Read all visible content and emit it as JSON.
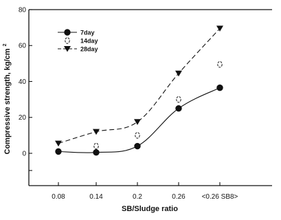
{
  "chart_data": {
    "type": "line",
    "xlabel": "SB/Sludge ratio",
    "ylabel": "Compressive strength, kg/cm",
    "ylabel_sup": "2",
    "categories": [
      "0.08",
      "0.14",
      "0.2",
      "0.26",
      "<0.26 SB8>"
    ],
    "y_ticks": [
      0,
      20,
      40,
      60,
      80
    ],
    "ylim": [
      -18,
      80
    ],
    "grid": false,
    "legend_position": "top-left",
    "series": [
      {
        "name": "7day",
        "values": [
          1,
          0.5,
          4,
          25,
          36.5
        ],
        "marker": "circle-filled",
        "line": "solid",
        "color": "#111111"
      },
      {
        "name": "14day",
        "values": [
          null,
          4,
          10,
          30,
          49.5
        ],
        "marker": "circle-open",
        "line": "none",
        "color": "#111111"
      },
      {
        "name": "28day",
        "values": [
          5.5,
          12,
          17.5,
          44.5,
          69.5
        ],
        "marker": "triangle-down-filled",
        "line": "dashed",
        "color": "#111111"
      }
    ]
  }
}
